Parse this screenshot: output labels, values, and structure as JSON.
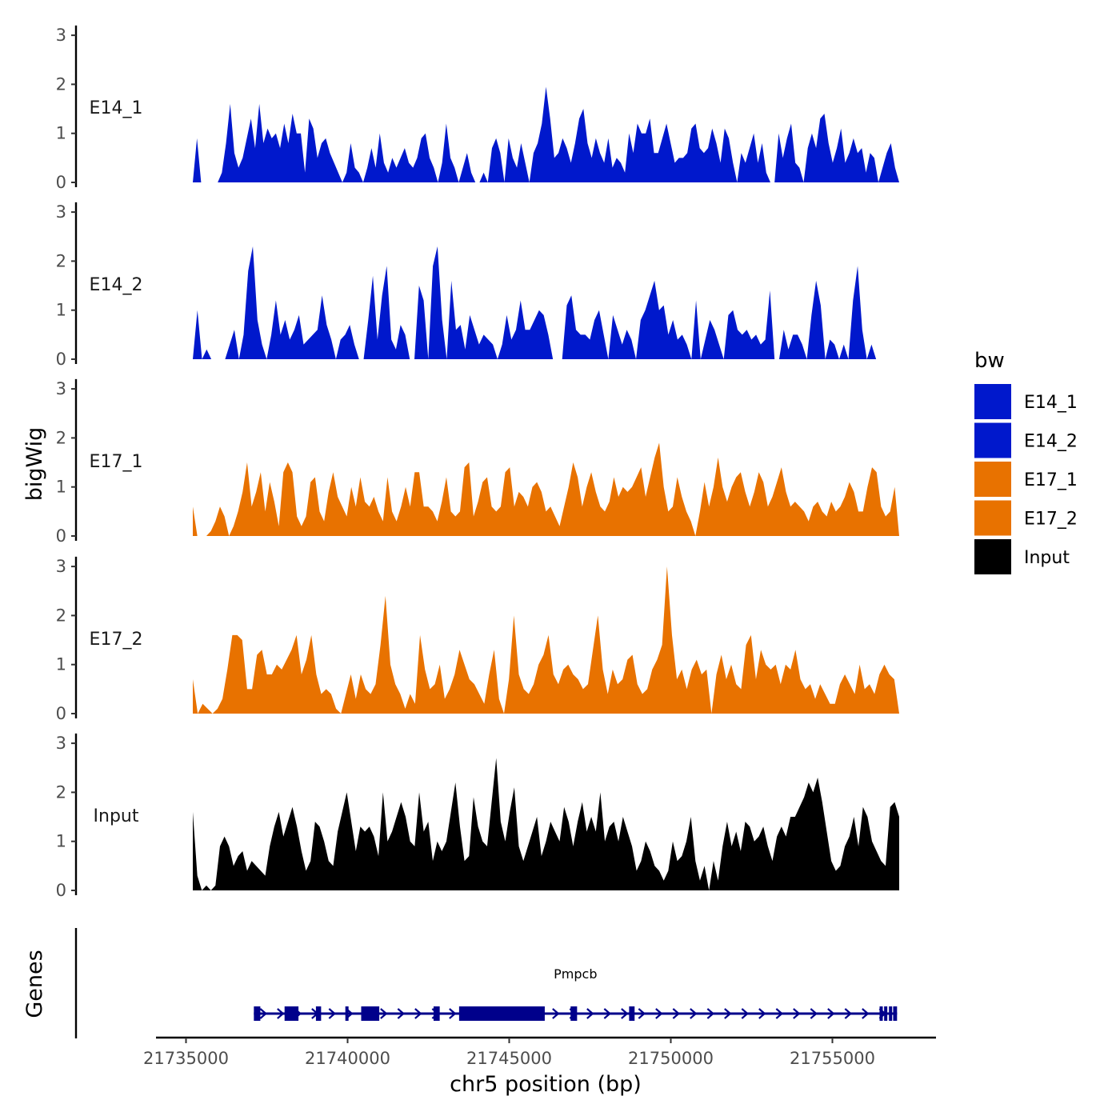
{
  "chart_data": {
    "type": "area",
    "title": "",
    "ylabel": "bigWig",
    "xlabel": "chr5 position (bp)",
    "chromosome": "chr5",
    "xlim": [
      21734000,
      21757400
    ],
    "data_range": [
      21735200,
      21757000
    ],
    "ylim": [
      0,
      3.2
    ],
    "y_ticks": [
      0,
      1,
      2,
      3
    ],
    "x_ticks": [
      {
        "value": 21735000,
        "label": "21735000"
      },
      {
        "value": 21740000,
        "label": "21740000"
      },
      {
        "value": 21745000,
        "label": "21745000"
      },
      {
        "value": 21750000,
        "label": "21750000"
      },
      {
        "value": 21755000,
        "label": "21755000"
      }
    ],
    "legend": {
      "title": "bw",
      "position": "right",
      "entries": [
        {
          "label": "E14_1",
          "color": "#0018CC"
        },
        {
          "label": "E14_2",
          "color": "#0018CC"
        },
        {
          "label": "E17_1",
          "color": "#E87200"
        },
        {
          "label": "E17_2",
          "color": "#E87200"
        },
        {
          "label": "Input",
          "color": "#000000"
        }
      ]
    },
    "series": [
      {
        "name": "E14_1",
        "color": "#0018CC",
        "values": [
          0.0,
          0.9,
          0.0,
          0.0,
          0.0,
          0.0,
          0.0,
          0.2,
          0.8,
          1.6,
          0.6,
          0.3,
          0.5,
          0.9,
          1.3,
          0.7,
          1.6,
          0.8,
          1.1,
          0.9,
          1.0,
          0.7,
          1.2,
          0.8,
          1.4,
          1.0,
          1.0,
          0.2,
          1.3,
          1.1,
          0.5,
          0.8,
          0.9,
          0.6,
          0.4,
          0.2,
          0.0,
          0.2,
          0.8,
          0.3,
          0.2,
          0.0,
          0.3,
          0.7,
          0.3,
          1.0,
          0.4,
          0.2,
          0.5,
          0.3,
          0.5,
          0.7,
          0.4,
          0.3,
          0.5,
          0.9,
          1.0,
          0.5,
          0.3,
          0.0,
          0.4,
          1.2,
          0.5,
          0.3,
          0.0,
          0.3,
          0.6,
          0.2,
          0.0,
          0.0,
          0.2,
          0.0,
          0.7,
          0.9,
          0.6,
          0.0,
          0.9,
          0.5,
          0.3,
          0.8,
          0.4,
          0.0,
          0.6,
          0.8,
          1.2,
          1.95,
          1.3,
          0.5,
          0.6,
          0.9,
          0.7,
          0.4,
          0.8,
          1.3,
          1.5,
          0.8,
          0.5,
          0.9,
          0.6,
          0.4,
          0.9,
          0.3,
          0.5,
          0.4,
          0.2,
          1.0,
          0.6,
          1.2,
          1.0,
          1.0,
          1.3,
          0.6,
          0.6,
          0.9,
          1.2,
          0.8,
          0.4,
          0.5,
          0.5,
          0.6,
          1.1,
          1.2,
          0.7,
          0.6,
          0.7,
          1.1,
          0.8,
          0.4,
          1.1,
          0.9,
          0.4,
          0.0,
          0.6,
          0.4,
          0.7,
          1.0,
          0.4,
          0.8,
          0.2,
          0.0,
          0.0,
          1.0,
          0.5,
          0.9,
          1.2,
          0.4,
          0.3,
          0.0,
          0.7,
          1.0,
          0.7,
          1.3,
          1.4,
          0.8,
          0.4,
          0.7,
          1.1,
          0.4,
          0.6,
          0.9,
          0.6,
          0.7,
          0.2,
          0.6,
          0.5,
          0.0,
          0.3,
          0.6,
          0.8,
          0.3,
          0.0
        ]
      },
      {
        "name": "E14_2",
        "color": "#0018CC",
        "values": [
          0.0,
          1.0,
          0.0,
          0.2,
          0.0,
          0.0,
          0.0,
          0.0,
          0.3,
          0.6,
          0.0,
          0.5,
          1.8,
          2.3,
          0.8,
          0.3,
          0.0,
          0.5,
          1.2,
          0.5,
          0.8,
          0.4,
          0.6,
          0.9,
          0.3,
          0.4,
          0.5,
          0.6,
          1.3,
          0.7,
          0.4,
          0.0,
          0.4,
          0.5,
          0.7,
          0.3,
          0.0,
          0.0,
          0.8,
          1.7,
          0.4,
          1.3,
          1.9,
          0.4,
          0.2,
          0.7,
          0.5,
          0.0,
          0.0,
          1.5,
          1.2,
          0.0,
          1.9,
          2.3,
          0.8,
          0.0,
          1.6,
          0.6,
          0.7,
          0.2,
          0.9,
          0.6,
          0.3,
          0.5,
          0.4,
          0.3,
          0.0,
          0.3,
          0.9,
          0.4,
          0.6,
          1.2,
          0.6,
          0.6,
          0.8,
          1.0,
          0.9,
          0.5,
          0.0,
          0.0,
          0.0,
          1.1,
          1.3,
          0.6,
          0.5,
          0.5,
          0.4,
          0.8,
          1.0,
          0.5,
          0.0,
          0.9,
          0.6,
          0.3,
          0.6,
          0.4,
          0.0,
          0.8,
          1.0,
          1.3,
          1.6,
          1.0,
          1.1,
          0.5,
          0.8,
          0.4,
          0.5,
          0.3,
          0.0,
          1.2,
          0.0,
          0.4,
          0.8,
          0.6,
          0.3,
          0.0,
          0.9,
          1.0,
          0.6,
          0.5,
          0.6,
          0.4,
          0.5,
          0.3,
          0.4,
          1.4,
          0.0,
          0.0,
          0.6,
          0.2,
          0.5,
          0.5,
          0.3,
          0.0,
          0.9,
          1.6,
          1.1,
          0.0,
          0.4,
          0.3,
          0.0,
          0.3,
          0.0,
          1.2,
          1.9,
          0.6,
          0.0,
          0.3,
          0.0,
          0.0,
          0.0,
          0.0,
          0.0,
          0.0
        ]
      },
      {
        "name": "E17_1",
        "color": "#E87200",
        "values": [
          0.6,
          0.0,
          0.0,
          0.0,
          0.1,
          0.3,
          0.6,
          0.4,
          0.0,
          0.2,
          0.5,
          0.9,
          1.5,
          0.6,
          0.9,
          1.3,
          0.5,
          1.1,
          0.7,
          0.2,
          1.3,
          1.5,
          1.3,
          0.4,
          0.2,
          0.4,
          1.1,
          1.2,
          0.5,
          0.3,
          0.9,
          1.3,
          0.8,
          0.6,
          0.4,
          1.0,
          0.6,
          1.2,
          0.7,
          0.6,
          0.8,
          0.5,
          0.3,
          1.2,
          0.5,
          0.3,
          0.6,
          1.0,
          0.6,
          1.3,
          1.3,
          0.6,
          0.6,
          0.5,
          0.3,
          0.7,
          1.2,
          0.5,
          0.4,
          0.5,
          1.4,
          1.5,
          0.4,
          0.7,
          1.1,
          1.2,
          0.6,
          0.5,
          0.6,
          1.3,
          1.4,
          0.6,
          0.9,
          0.8,
          0.6,
          1.0,
          1.1,
          0.9,
          0.5,
          0.6,
          0.4,
          0.2,
          0.6,
          1.0,
          1.5,
          1.2,
          0.6,
          1.0,
          1.3,
          0.9,
          0.6,
          0.5,
          0.7,
          1.2,
          0.8,
          1.0,
          0.9,
          1.0,
          1.2,
          1.4,
          0.8,
          1.2,
          1.6,
          1.9,
          1.0,
          0.5,
          0.6,
          1.2,
          0.8,
          0.5,
          0.3,
          0.0,
          0.5,
          1.1,
          0.6,
          1.0,
          1.6,
          1.0,
          0.7,
          1.0,
          1.2,
          1.3,
          0.9,
          0.6,
          0.9,
          1.3,
          1.1,
          0.6,
          0.8,
          1.1,
          1.4,
          0.9,
          0.6,
          0.7,
          0.6,
          0.5,
          0.3,
          0.6,
          0.7,
          0.5,
          0.4,
          0.7,
          0.5,
          0.6,
          0.8,
          1.1,
          0.9,
          0.5,
          0.5,
          1.0,
          1.4,
          1.3,
          0.6,
          0.4,
          0.5,
          1.0,
          0.0
        ]
      },
      {
        "name": "E17_2",
        "color": "#E87200",
        "values": [
          0.7,
          0.0,
          0.2,
          0.1,
          0.0,
          0.1,
          0.3,
          0.9,
          1.6,
          1.6,
          1.5,
          0.5,
          0.5,
          1.2,
          1.3,
          0.8,
          0.8,
          1.0,
          0.9,
          1.1,
          1.3,
          1.6,
          0.8,
          1.1,
          1.6,
          0.8,
          0.4,
          0.5,
          0.4,
          0.1,
          0.0,
          0.4,
          0.8,
          0.3,
          0.8,
          0.5,
          0.4,
          0.6,
          1.4,
          2.4,
          1.0,
          0.6,
          0.4,
          0.1,
          0.4,
          0.2,
          1.6,
          0.9,
          0.5,
          0.6,
          1.0,
          0.3,
          0.5,
          0.8,
          1.3,
          1.0,
          0.7,
          0.6,
          0.4,
          0.2,
          0.8,
          1.3,
          0.3,
          0.0,
          0.7,
          2.0,
          0.8,
          0.5,
          0.4,
          0.6,
          1.0,
          1.2,
          1.6,
          0.8,
          0.6,
          0.9,
          1.0,
          0.8,
          0.7,
          0.5,
          0.6,
          1.3,
          2.0,
          0.9,
          0.4,
          0.9,
          0.6,
          0.7,
          1.1,
          1.2,
          0.6,
          0.4,
          0.5,
          0.9,
          1.1,
          1.4,
          3.0,
          1.6,
          0.7,
          0.9,
          0.5,
          0.9,
          1.1,
          0.8,
          0.9,
          0.0,
          0.8,
          1.2,
          0.7,
          1.0,
          0.6,
          0.5,
          1.4,
          1.6,
          0.7,
          1.3,
          1.0,
          0.9,
          1.0,
          0.6,
          1.0,
          0.9,
          1.3,
          0.7,
          0.5,
          0.6,
          0.3,
          0.6,
          0.4,
          0.2,
          0.2,
          0.6,
          0.8,
          0.6,
          0.4,
          1.0,
          0.5,
          0.6,
          0.4,
          0.8,
          1.0,
          0.8,
          0.7,
          0.0
        ]
      },
      {
        "name": "Input",
        "color": "#000000",
        "values": [
          1.6,
          0.3,
          0.0,
          0.1,
          0.0,
          0.1,
          0.9,
          1.1,
          0.9,
          0.5,
          0.7,
          0.8,
          0.4,
          0.6,
          0.5,
          0.4,
          0.3,
          0.9,
          1.3,
          1.6,
          1.1,
          1.4,
          1.7,
          1.3,
          0.8,
          0.4,
          0.6,
          1.4,
          1.3,
          1.0,
          0.6,
          0.5,
          1.2,
          1.6,
          2.0,
          1.4,
          0.8,
          1.3,
          1.2,
          1.3,
          1.1,
          0.7,
          2.0,
          1.0,
          1.2,
          1.5,
          1.8,
          1.5,
          1.0,
          0.9,
          2.0,
          1.2,
          1.4,
          0.6,
          1.0,
          0.8,
          1.0,
          1.6,
          2.2,
          1.3,
          0.6,
          0.7,
          1.9,
          1.3,
          1.0,
          0.9,
          1.8,
          2.7,
          1.4,
          1.0,
          1.6,
          2.1,
          0.9,
          0.6,
          0.9,
          1.2,
          1.5,
          0.7,
          1.0,
          1.4,
          1.2,
          1.0,
          1.7,
          1.4,
          0.9,
          1.4,
          1.8,
          1.2,
          1.5,
          1.2,
          2.0,
          1.0,
          1.3,
          1.4,
          1.0,
          1.5,
          1.2,
          0.9,
          0.4,
          0.6,
          1.0,
          0.8,
          0.5,
          0.4,
          0.2,
          0.4,
          1.0,
          0.6,
          0.7,
          1.0,
          1.5,
          0.6,
          0.2,
          0.5,
          0.0,
          0.6,
          0.2,
          0.9,
          1.4,
          0.9,
          1.2,
          0.8,
          1.4,
          1.3,
          1.0,
          1.1,
          1.3,
          0.9,
          0.6,
          1.1,
          1.3,
          1.1,
          1.5,
          1.5,
          1.7,
          1.9,
          2.2,
          2.0,
          2.3,
          1.8,
          1.2,
          0.6,
          0.4,
          0.5,
          0.9,
          1.1,
          1.5,
          0.9,
          1.7,
          1.5,
          1.0,
          0.8,
          0.6,
          0.5,
          1.7,
          1.8,
          1.5
        ]
      }
    ],
    "genes": {
      "track_label": "Genes",
      "gene_name": "Pmpcb",
      "color": "#00008B",
      "strand": "+",
      "start": 21737100,
      "end": 21757000,
      "exons": [
        [
          21737100,
          21737300
        ],
        [
          21738050,
          21738480
        ],
        [
          21739020,
          21739180
        ],
        [
          21739930,
          21740000
        ],
        [
          21740420,
          21740980
        ],
        [
          21742660,
          21742850
        ],
        [
          21743450,
          21746100
        ],
        [
          21746900,
          21747100
        ],
        [
          21748710,
          21748880
        ],
        [
          21756460,
          21756530
        ],
        [
          21756600,
          21756660
        ],
        [
          21756750,
          21756800
        ],
        [
          21756880,
          21757000
        ]
      ]
    }
  }
}
